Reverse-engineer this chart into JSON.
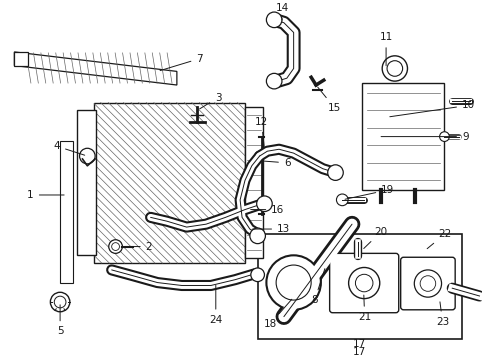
{
  "background_color": "#ffffff",
  "figsize": [
    4.89,
    3.6
  ],
  "dpi": 100,
  "dark": "#1a1a1a",
  "gray": "#666666"
}
